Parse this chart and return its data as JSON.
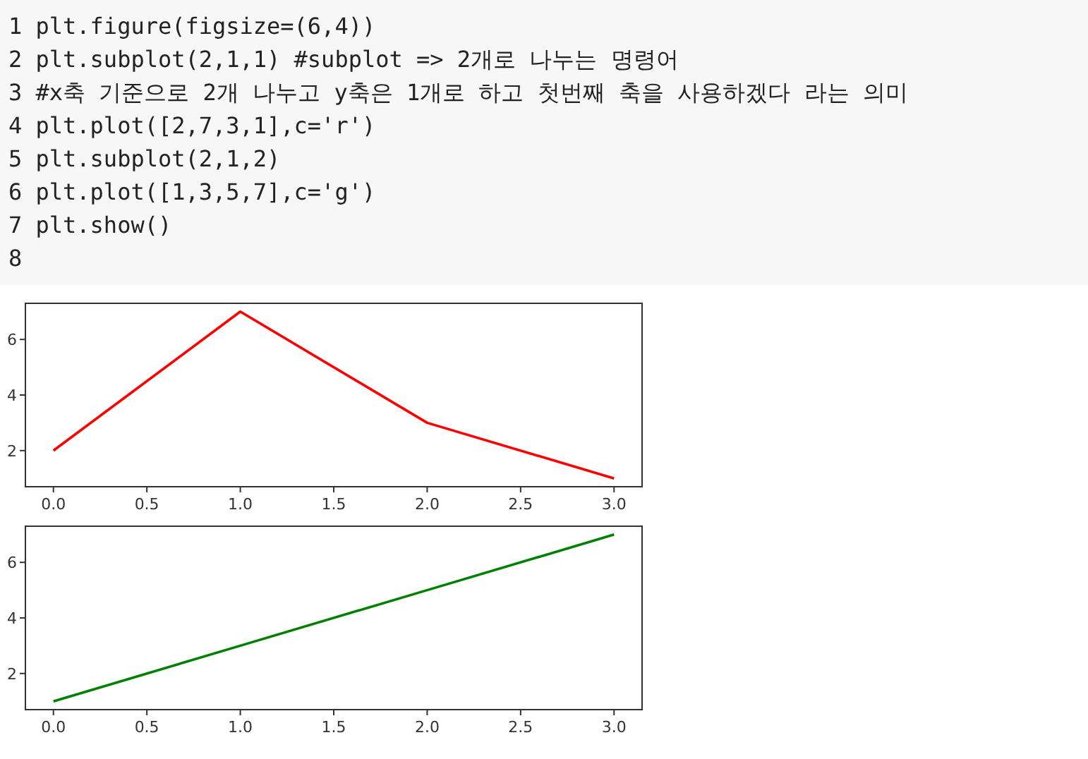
{
  "chart_data": [
    {
      "type": "other",
      "annotations": [
        "1 plt.figure(figsize=(6,4))",
        "2 plt.subplot(2,1,1) #subplot => 2개로 나누는 명령어",
        "3 #x축 기준으로 2개 나누고 y축은 1개로 하고 첫번째 축을 사용하겠다 라는 의미",
        "4 plt.plot([2,7,3,1],c='r')",
        "5 plt.subplot(2,1,2)",
        "6 plt.plot([1,3,5,7],c='g')",
        "7 plt.show()",
        "8"
      ]
    },
    {
      "type": "line",
      "x": [
        0,
        1,
        2,
        3
      ],
      "series": [
        {
          "color": "#ff0000",
          "values": [
            2,
            7,
            3,
            1
          ]
        }
      ],
      "xlim": [
        -0.15,
        3.15
      ],
      "xticks": [
        {
          "value": 0,
          "label": "0.0"
        },
        {
          "value": 0.5,
          "label": "0.5"
        },
        {
          "value": 1,
          "label": "1.0"
        },
        {
          "value": 1.5,
          "label": "1.5"
        },
        {
          "value": 2,
          "label": "2.0"
        },
        {
          "value": 2.5,
          "label": "2.5"
        },
        {
          "value": 3,
          "label": "3.0"
        }
      ],
      "ylim": [
        0.7,
        7.3
      ],
      "yticks": [
        2,
        4,
        6
      ]
    },
    {
      "type": "line",
      "x": [
        0,
        1,
        2,
        3
      ],
      "series": [
        {
          "color": "#008000",
          "values": [
            1,
            3,
            5,
            7
          ]
        }
      ],
      "xlim": [
        -0.15,
        3.15
      ],
      "xticks": [
        {
          "value": 0,
          "label": "0.0"
        },
        {
          "value": 0.5,
          "label": "0.5"
        },
        {
          "value": 1,
          "label": "1.0"
        },
        {
          "value": 1.5,
          "label": "1.5"
        },
        {
          "value": 2,
          "label": "2.0"
        },
        {
          "value": 2.5,
          "label": "2.5"
        },
        {
          "value": 3,
          "label": "3.0"
        }
      ],
      "ylim": [
        0.7,
        7.3
      ],
      "yticks": [
        2,
        4,
        6
      ]
    }
  ]
}
